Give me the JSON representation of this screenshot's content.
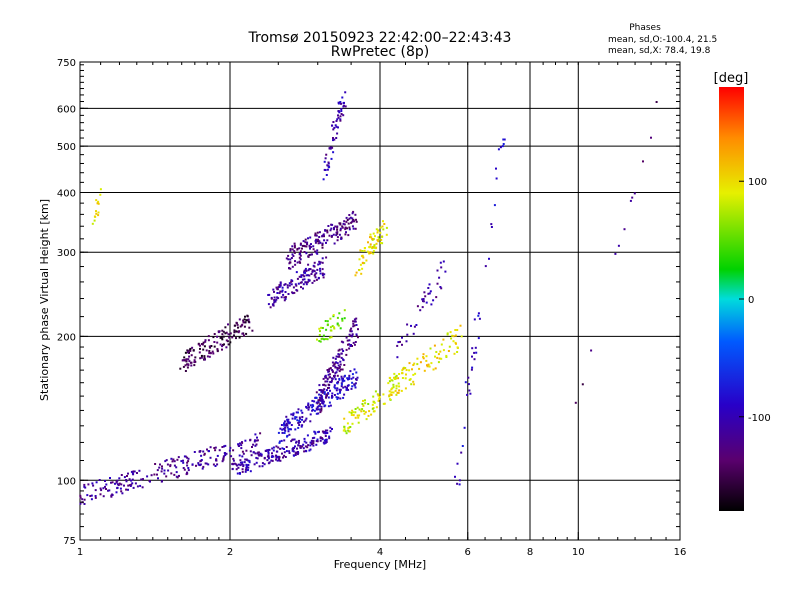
{
  "chart_data": {
    "type": "scatter",
    "title": "Tromsø 20150923 22:42:00–22:43:43",
    "subtitle": "RwPretec (8p)",
    "xlabel": "Frequency [MHz]",
    "ylabel": "Stationary phase Virtual Height [km]",
    "x_scale": "log",
    "y_scale": "log",
    "xlim": [
      1,
      16
    ],
    "ylim": [
      75,
      750
    ],
    "x_ticks": [
      1,
      2,
      4,
      6,
      8,
      10,
      16
    ],
    "x_tick_labels": [
      "1",
      "2",
      "4",
      "6",
      "8",
      "10",
      "16"
    ],
    "y_ticks": [
      75,
      100,
      200,
      300,
      400,
      500,
      600,
      750
    ],
    "y_tick_labels": [
      "75",
      "100",
      "200",
      "300",
      "400",
      "500",
      "600",
      "750"
    ],
    "grid": true,
    "stats": {
      "header": "Phases",
      "line_o": "mean, sd,O:-100.4, 21.5",
      "line_x": "mean, sd,X:  78.4, 19.8"
    },
    "colorbar": {
      "label": "[deg]",
      "range": [
        -180,
        180
      ],
      "ticks": [
        100,
        0,
        -100
      ],
      "tick_labels": [
        "100",
        "0",
        "-100"
      ]
    },
    "traces": [
      {
        "x0": 1.0,
        "x1": 2.3,
        "y0": 93,
        "y1": 120,
        "phase": -115,
        "n": 230,
        "spread": 0.05
      },
      {
        "x0": 2.0,
        "x1": 3.2,
        "y0": 105,
        "y1": 125,
        "phase": -105,
        "n": 210,
        "spread": 0.04
      },
      {
        "x0": 2.5,
        "x1": 3.6,
        "y0": 125,
        "y1": 165,
        "phase": -90,
        "n": 200,
        "spread": 0.05
      },
      {
        "x0": 3.0,
        "x1": 3.6,
        "y0": 145,
        "y1": 210,
        "phase": -120,
        "n": 140,
        "spread": 0.06
      },
      {
        "x0": 1.6,
        "x1": 2.2,
        "y0": 175,
        "y1": 215,
        "phase": -150,
        "n": 150,
        "spread": 0.05
      },
      {
        "x0": 2.4,
        "x1": 3.1,
        "y0": 240,
        "y1": 280,
        "phase": -110,
        "n": 130,
        "spread": 0.05
      },
      {
        "x0": 2.6,
        "x1": 3.6,
        "y0": 290,
        "y1": 350,
        "phase": -125,
        "n": 170,
        "spread": 0.05
      },
      {
        "x0": 3.1,
        "x1": 3.4,
        "y0": 440,
        "y1": 640,
        "phase": -105,
        "n": 60,
        "spread": 0.06
      },
      {
        "x0": 3.6,
        "x1": 4.1,
        "y0": 280,
        "y1": 340,
        "phase": 100,
        "n": 70,
        "spread": 0.05
      },
      {
        "x0": 3.4,
        "x1": 4.4,
        "y0": 130,
        "y1": 160,
        "phase": 85,
        "n": 90,
        "spread": 0.05
      },
      {
        "x0": 4.2,
        "x1": 5.8,
        "y0": 155,
        "y1": 200,
        "phase": 100,
        "n": 90,
        "spread": 0.06
      },
      {
        "x0": 3.0,
        "x1": 3.4,
        "y0": 195,
        "y1": 225,
        "phase": 60,
        "n": 40,
        "spread": 0.05
      },
      {
        "x0": 4.3,
        "x1": 5.4,
        "y0": 180,
        "y1": 280,
        "phase": -110,
        "n": 40,
        "spread": 0.06
      },
      {
        "x0": 1.07,
        "x1": 1.1,
        "y0": 340,
        "y1": 430,
        "phase": 100,
        "n": 14,
        "spread": 0.03
      },
      {
        "x0": 5.7,
        "x1": 7.2,
        "y0": 100,
        "y1": 610,
        "phase": -90,
        "n": 40,
        "spread": 0.08
      },
      {
        "x0": 9.9,
        "x1": 14.5,
        "y0": 140,
        "y1": 630,
        "phase": -130,
        "n": 12,
        "spread": 0.05
      }
    ]
  }
}
